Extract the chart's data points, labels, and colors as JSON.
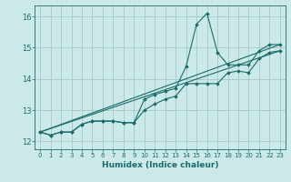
{
  "xlabel": "Humidex (Indice chaleur)",
  "xlim": [
    -0.5,
    23.5
  ],
  "ylim": [
    11.75,
    16.35
  ],
  "yticks": [
    12,
    13,
    14,
    15,
    16
  ],
  "xticks": [
    0,
    1,
    2,
    3,
    4,
    5,
    6,
    7,
    8,
    9,
    10,
    11,
    12,
    13,
    14,
    15,
    16,
    17,
    18,
    19,
    20,
    21,
    22,
    23
  ],
  "background_color": "#cce9e9",
  "grid_color": "#aacccc",
  "line_color": "#1a6b6b",
  "line1_with_spike": {
    "x": [
      0,
      1,
      2,
      3,
      4,
      5,
      6,
      7,
      8,
      9,
      10,
      11,
      12,
      13,
      14,
      15,
      16,
      17,
      18,
      19,
      20,
      21,
      22,
      23
    ],
    "y": [
      12.3,
      12.2,
      12.3,
      12.3,
      12.55,
      12.65,
      12.65,
      12.65,
      12.6,
      12.6,
      13.35,
      13.5,
      13.6,
      13.7,
      14.4,
      15.75,
      16.1,
      14.85,
      14.45,
      14.45,
      14.45,
      14.9,
      15.1,
      15.1
    ]
  },
  "line2_flat_dip": {
    "x": [
      0,
      1,
      2,
      3,
      4,
      5,
      6,
      7,
      8,
      9,
      10,
      11,
      12,
      13,
      14,
      15,
      16,
      17,
      18,
      19,
      20,
      21,
      22,
      23
    ],
    "y": [
      12.3,
      12.2,
      12.3,
      12.3,
      12.55,
      12.65,
      12.65,
      12.65,
      12.6,
      12.6,
      13.0,
      13.2,
      13.35,
      13.45,
      13.85,
      13.85,
      13.85,
      13.85,
      14.2,
      14.25,
      14.2,
      14.65,
      14.85,
      14.9
    ]
  },
  "line3_ref_upper": {
    "x": [
      0,
      23
    ],
    "y": [
      12.3,
      15.1
    ]
  },
  "line4_ref_lower": {
    "x": [
      0,
      23
    ],
    "y": [
      12.3,
      14.9
    ]
  }
}
